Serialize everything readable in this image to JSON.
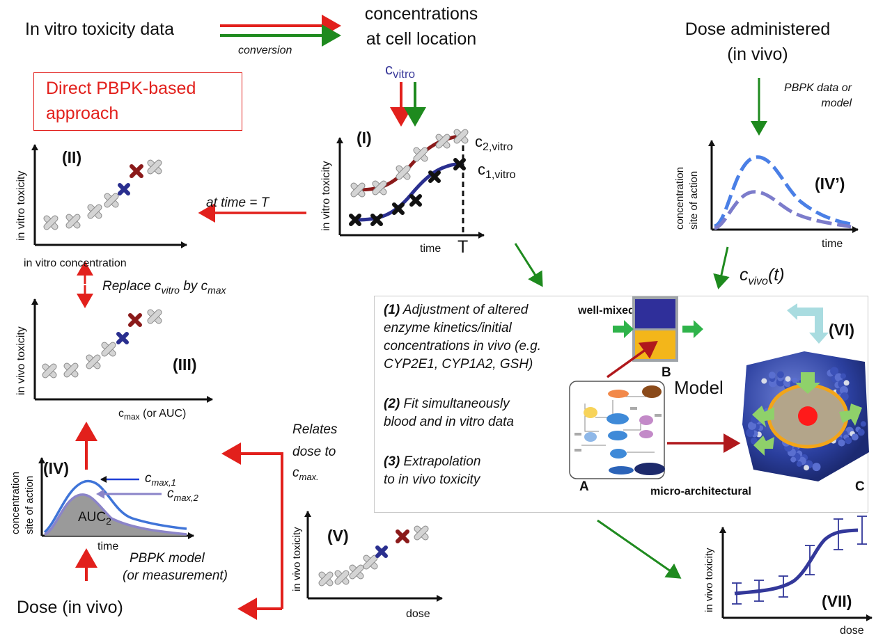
{
  "header": {
    "in_vitro_data": "In vitro toxicity data",
    "conversion": "conversion",
    "conc_line1": "concentrations",
    "conc_line2": "at cell location",
    "c_vitro": "c",
    "c_vitro_sub": "vitro",
    "dose_line1": "Dose administered",
    "dose_line2": "(in vivo)",
    "pbpk_line1": "PBPK data or",
    "pbpk_line2": "model"
  },
  "approach_box": {
    "line1": "Direct PBPK-based",
    "line2": "approach"
  },
  "panel_I": {
    "label": "(I)",
    "ylabel": "in vitro toxicity",
    "xlabel": "time",
    "T": "T",
    "c2": "c",
    "c2_sub": "2,vitro",
    "c1": "c",
    "c1_sub": "1,vitro"
  },
  "panel_II": {
    "label": "(II)",
    "ylabel": "in vitro toxicity",
    "xlabel": "in vitro concentration"
  },
  "at_time": "at time = T",
  "replace": {
    "text": "Replace c",
    "sub1": "vitro",
    "mid": " by c",
    "sub2": "max"
  },
  "panel_III": {
    "label": "(III)",
    "ylabel": "in vivo toxicity",
    "xlabel": "c",
    "xlabel_sub": "max",
    "xlabel_rest": " (or AUC)"
  },
  "panel_IV": {
    "label": "(IV)",
    "ylabel_line1": "concentration",
    "ylabel_line2": "site of action",
    "xlabel": "time",
    "cmax1": "c",
    "cmax1_sub": "max,1",
    "cmax2": "c",
    "cmax2_sub": "max,2",
    "auc": "AUC",
    "auc_sub": "2"
  },
  "pbpk_model": {
    "line1": "PBPK model",
    "line2": "(or measurement)"
  },
  "dose_in_vivo": "Dose (in vivo)",
  "relates": {
    "line1": "Relates",
    "line2": "dose to",
    "line3": "c",
    "line3_sub": "max."
  },
  "panel_V": {
    "label": "(V)",
    "ylabel": "in vivo toxicity",
    "xlabel": "dose"
  },
  "panel_IVp": {
    "label": "(IV’)",
    "ylabel_line1": "concentration",
    "ylabel_line2": "site of action",
    "xlabel": "time"
  },
  "c_vivo": {
    "text": "c",
    "sub": "vivo",
    "rest": "(t)"
  },
  "main_box": {
    "item1_num": "(1)",
    "item1_line1": " Adjustment of altered",
    "item1_line2": "enzyme kinetics/initial",
    "item1_line3": "concentrations in vivo (e.g.",
    "item1_line4": "CYP2E1, CYP1A2, GSH)",
    "item2_num": "(2)",
    "item2_line1": " Fit simultaneously",
    "item2_line2": "blood and in vitro data",
    "item3_num": "(3)",
    "item3_line1": " Extrapolation",
    "item3_line2": "to in vivo toxicity",
    "well_mixed": "well-mixed",
    "label_B": "B",
    "model": "Model",
    "label_A": "A",
    "micro": "micro-architectural",
    "label_C": "C",
    "panel_label": "(VI)"
  },
  "panel_VII": {
    "label": "(VII)",
    "ylabel": "in vivo toxicity",
    "xlabel": "dose"
  },
  "colors": {
    "red": "#e2201c",
    "green": "#1e8a1e",
    "navy": "#2a2f8f",
    "darkred": "#8b1a1a",
    "blue": "#3f74d8"
  }
}
